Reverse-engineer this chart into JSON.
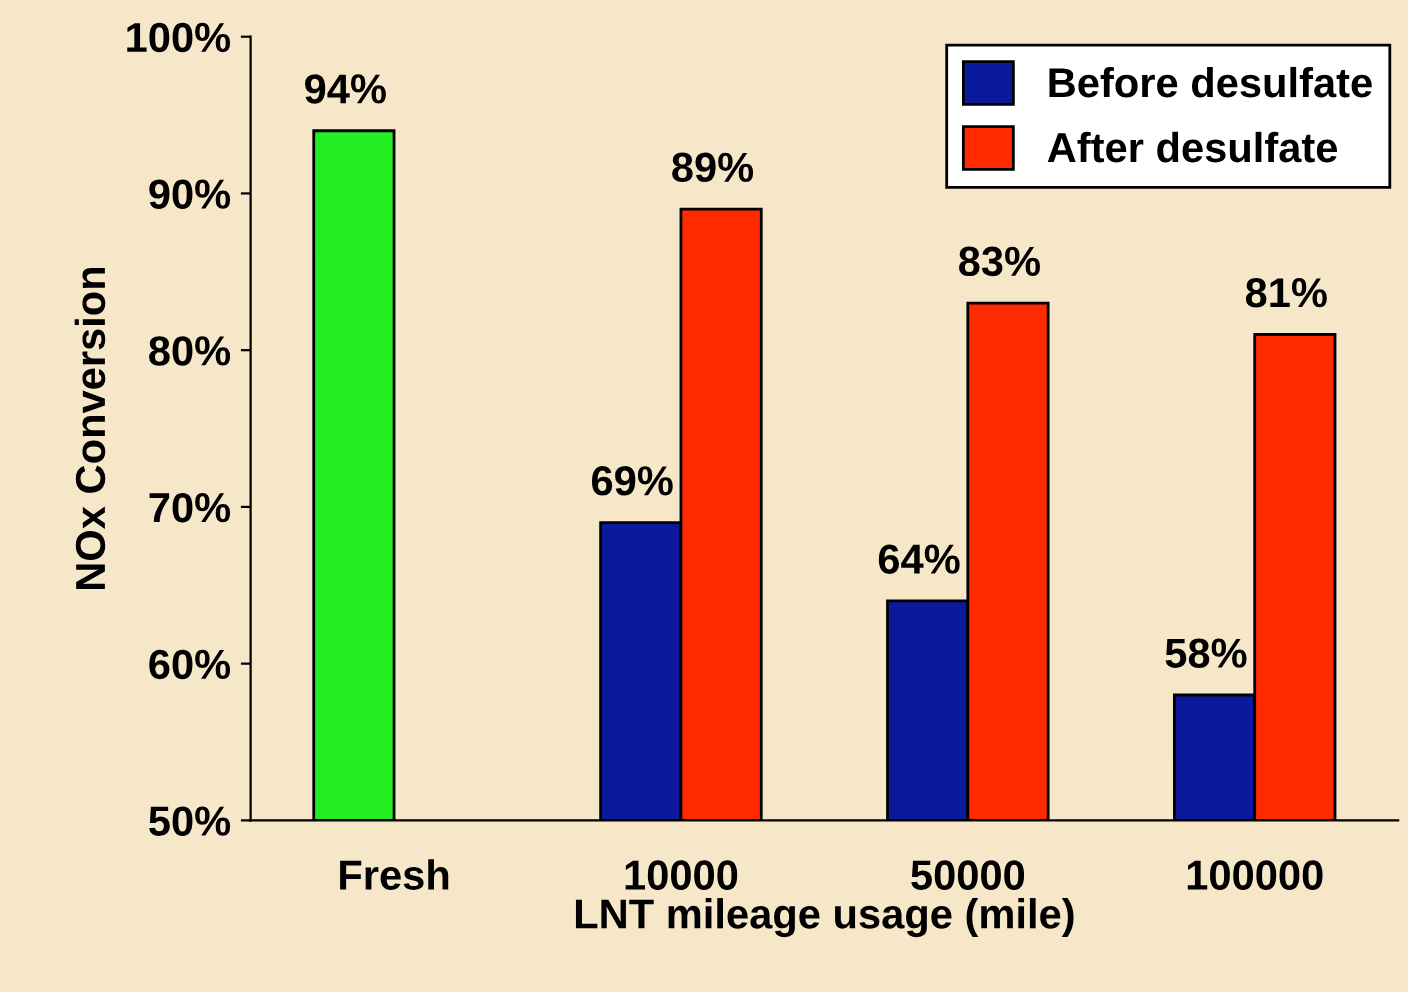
{
  "chart_data": {
    "type": "bar",
    "xlabel": "LNT mileage usage (mile)",
    "ylabel": "NOx Conversion",
    "categories": [
      "Fresh",
      "10000",
      "50000",
      "100000"
    ],
    "series": [
      {
        "name": "Before desulfate",
        "color": "#0a1a9a",
        "colors": [
          "#22ee22",
          "#0a1a9a",
          "#0a1a9a",
          "#0a1a9a"
        ],
        "values": [
          94,
          69,
          64,
          58
        ],
        "value_labels": [
          "94%",
          "69%",
          "64%",
          "58%"
        ]
      },
      {
        "name": "After desulfate",
        "color": "#ff2a00",
        "values": [
          null,
          89,
          83,
          81
        ],
        "value_labels": [
          null,
          "89%",
          "83%",
          "81%"
        ]
      }
    ],
    "ylim": [
      50,
      100
    ],
    "yticks": [
      {
        "value": 50,
        "label": "50%"
      },
      {
        "value": 60,
        "label": "60%"
      },
      {
        "value": 70,
        "label": "70%"
      },
      {
        "value": 80,
        "label": "80%"
      },
      {
        "value": 90,
        "label": "90%"
      },
      {
        "value": 100,
        "label": "100%"
      }
    ],
    "grid": false,
    "legend": "top right"
  }
}
